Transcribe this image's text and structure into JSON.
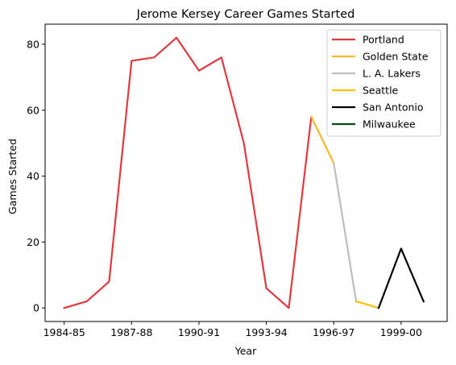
{
  "chart_data": {
    "type": "line",
    "title": "Jerome Kersey Career Games Started",
    "xlabel": "Year",
    "ylabel": "Games Started",
    "x_ticks": [
      "1984-85",
      "1987-88",
      "1990-91",
      "1993-94",
      "1996-97",
      "1999-00"
    ],
    "y_ticks": [
      "0",
      "20",
      "40",
      "60",
      "80"
    ],
    "ylim": [
      -4.1,
      86.1
    ],
    "xlim": [
      "1984-85",
      "2001-02"
    ],
    "grid": false,
    "legend_position": "top-right",
    "seasons": [
      "1984-85",
      "1985-86",
      "1986-87",
      "1987-88",
      "1988-89",
      "1989-90",
      "1990-91",
      "1991-92",
      "1992-93",
      "1993-94",
      "1994-95",
      "1995-96",
      "1996-97",
      "1997-98",
      "1998-99",
      "1999-00",
      "2000-01"
    ],
    "series": [
      {
        "name": "Portland",
        "color": "#e03a3e",
        "points": [
          [
            "1984-85",
            0
          ],
          [
            "1985-86",
            2
          ],
          [
            "1986-87",
            8
          ],
          [
            "1987-88",
            75
          ],
          [
            "1988-89",
            76
          ],
          [
            "1989-90",
            82
          ],
          [
            "1990-91",
            72
          ],
          [
            "1991-92",
            76
          ],
          [
            "1992-93",
            50
          ],
          [
            "1993-94",
            6
          ],
          [
            "1994-95",
            0
          ],
          [
            "1995-96",
            58
          ]
        ]
      },
      {
        "name": "Golden State",
        "color": "#fdb927",
        "points": [
          [
            "1995-96",
            58
          ],
          [
            "1996-97",
            44
          ]
        ]
      },
      {
        "name": "L. A. Lakers",
        "color": "#bebebe",
        "points": [
          [
            "1996-97",
            44
          ],
          [
            "1997-98",
            2
          ]
        ]
      },
      {
        "name": "Seattle",
        "color": "#ffc200",
        "points": [
          [
            "1997-98",
            2
          ],
          [
            "1998-99",
            0
          ]
        ]
      },
      {
        "name": "San Antonio",
        "color": "#000000",
        "points": [
          [
            "1998-99",
            0
          ],
          [
            "1999-00",
            18
          ],
          [
            "2000-01",
            2
          ]
        ]
      },
      {
        "name": "Milwaukee",
        "color": "#00471b",
        "points": []
      }
    ]
  }
}
